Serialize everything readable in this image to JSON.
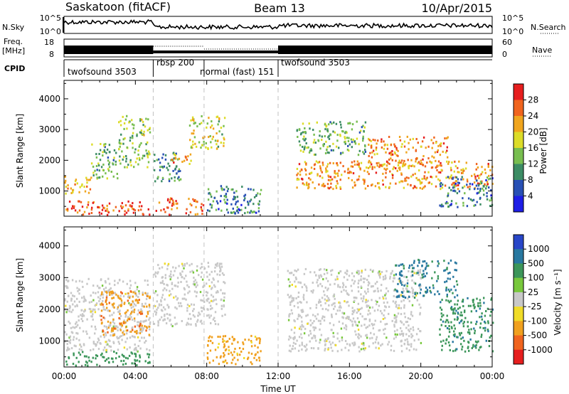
{
  "header": {
    "site": "Saskatoon (fitACF)",
    "beam": "Beam 13",
    "date": "10/Apr/2015"
  },
  "labels": {
    "nsky": "N.Sky",
    "nsearch": "N.Search",
    "freq_line1": "Freq.",
    "freq_line2": "[MHz]",
    "nave": "Nave",
    "cpid": "CPID",
    "slant_range": "Slant Range [km]",
    "time_axis": "Time UT"
  },
  "noise_ticks": {
    "top": "10^5",
    "bottom": "10^0"
  },
  "freq_ticks": {
    "left": [
      "18",
      "8"
    ],
    "right": [
      "60",
      "0"
    ]
  },
  "cpid_segments": [
    {
      "name": "twofsound 3503",
      "start_h": 0,
      "end_h": 5
    },
    {
      "name": "rbsp 200",
      "start_h": 5,
      "end_h": 7.85
    },
    {
      "name": "normal (fast) 151",
      "start_h": 7.85,
      "end_h": 12
    },
    {
      "name": "twofsound 3503",
      "start_h": 12,
      "end_h": 24
    }
  ],
  "colors": {
    "missing": "#ffffff",
    "ground_scatter": "#c8c8c8"
  },
  "chart_data": [
    {
      "type": "heatmap",
      "title": "",
      "xlabel": "Time UT",
      "ylabel": "Slant Range [km]",
      "xlim": [
        0,
        24
      ],
      "ylim": [
        180,
        4600
      ],
      "x_ticks": [
        "00:00",
        "04:00",
        "08:00",
        "12:00",
        "16:00",
        "20:00",
        "00:00"
      ],
      "y_ticks": [
        1000,
        2000,
        3000,
        4000
      ],
      "colorbar": {
        "label": "Power [dB]",
        "ticks": [
          "4",
          "8",
          "12",
          "16",
          "20",
          "24",
          "28"
        ],
        "range": [
          0,
          30
        ],
        "colors": [
          "#1e1ee6",
          "#2850b4",
          "#3c8c64",
          "#78be50",
          "#dcdc28",
          "#f0a51e",
          "#f0641e",
          "#e61e1e"
        ]
      },
      "features": [
        {
          "start_h": 0.0,
          "end_h": 4.8,
          "range_km": [
            250,
            700
          ],
          "value": 26
        },
        {
          "start_h": 0.0,
          "end_h": 1.6,
          "range_km": [
            900,
            1500
          ],
          "value": 20
        },
        {
          "start_h": 1.5,
          "end_h": 3.0,
          "range_km": [
            1400,
            2600
          ],
          "value": 12
        },
        {
          "start_h": 3.0,
          "end_h": 4.8,
          "range_km": [
            1800,
            3500
          ],
          "value": 14
        },
        {
          "start_h": 5.0,
          "end_h": 7.8,
          "range_km": [
            250,
            800
          ],
          "value": 24
        },
        {
          "start_h": 5.0,
          "end_h": 6.5,
          "range_km": [
            1300,
            2300
          ],
          "value": 10
        },
        {
          "start_h": 6.0,
          "end_h": 7.2,
          "range_km": [
            1900,
            2300
          ],
          "value": 22
        },
        {
          "start_h": 7.0,
          "end_h": 9.0,
          "range_km": [
            2400,
            3500
          ],
          "value": 16
        },
        {
          "start_h": 8.0,
          "end_h": 11.0,
          "range_km": [
            300,
            1200
          ],
          "value": 8
        },
        {
          "start_h": 13.0,
          "end_h": 24.0,
          "range_km": [
            1100,
            2000
          ],
          "value": 22
        },
        {
          "start_h": 13.0,
          "end_h": 17.0,
          "range_km": [
            2200,
            3300
          ],
          "value": 12
        },
        {
          "start_h": 17.0,
          "end_h": 21.5,
          "range_km": [
            1800,
            2800
          ],
          "value": 22
        },
        {
          "start_h": 21.0,
          "end_h": 24.0,
          "range_km": [
            500,
            1500
          ],
          "value": 8
        }
      ]
    },
    {
      "type": "heatmap",
      "title": "",
      "xlabel": "Time UT",
      "ylabel": "Slant Range [km]",
      "xlim": [
        0,
        24
      ],
      "ylim": [
        180,
        4600
      ],
      "x_ticks": [
        "00:00",
        "04:00",
        "08:00",
        "12:00",
        "16:00",
        "20:00",
        "00:00"
      ],
      "y_ticks": [
        1000,
        2000,
        3000,
        4000
      ],
      "colorbar": {
        "label": "Velocity [m s⁻¹]",
        "ticks": [
          "1000",
          "500",
          "100",
          "25",
          "-25",
          "-100",
          "-500",
          "-1000"
        ],
        "colors": [
          "#2846c8",
          "#2878a0",
          "#3c965a",
          "#78c83c",
          "#c8c8c8",
          "#f0dc28",
          "#f0a01e",
          "#f0641e",
          "#e61e1e"
        ]
      },
      "features": [
        {
          "start_h": 0.0,
          "end_h": 4.8,
          "range_km": [
            250,
            700
          ],
          "value": 300
        },
        {
          "start_h": 0.0,
          "end_h": 4.8,
          "range_km": [
            700,
            3000
          ],
          "value": 0
        },
        {
          "start_h": 2.0,
          "end_h": 4.8,
          "range_km": [
            1200,
            2600
          ],
          "value": -400
        },
        {
          "start_h": 5.0,
          "end_h": 9.0,
          "range_km": [
            1500,
            3500
          ],
          "value": 0
        },
        {
          "start_h": 8.0,
          "end_h": 11.0,
          "range_km": [
            300,
            1200
          ],
          "value": -150
        },
        {
          "start_h": 12.5,
          "end_h": 20.0,
          "range_km": [
            700,
            3300
          ],
          "value": 0
        },
        {
          "start_h": 18.5,
          "end_h": 22.0,
          "range_km": [
            2400,
            3600
          ],
          "value": 600
        },
        {
          "start_h": 21.0,
          "end_h": 24.0,
          "range_km": [
            700,
            2400
          ],
          "value": 400
        }
      ]
    }
  ]
}
